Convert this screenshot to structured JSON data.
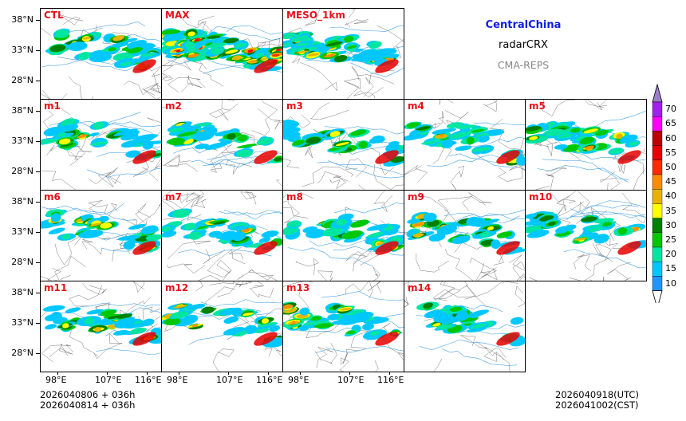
{
  "header": {
    "region": "CentralChina",
    "variable": "radarCRX",
    "system": "CMA-REPS",
    "region_color": "#0d1ee0",
    "system_color": "#888888"
  },
  "panels": [
    {
      "label": "CTL"
    },
    {
      "label": "MAX"
    },
    {
      "label": "MESO_1km"
    },
    {
      "label": "m1"
    },
    {
      "label": "m2"
    },
    {
      "label": "m3"
    },
    {
      "label": "m4"
    },
    {
      "label": "m5"
    },
    {
      "label": "m6"
    },
    {
      "label": "m7"
    },
    {
      "label": "m8"
    },
    {
      "label": "m9"
    },
    {
      "label": "m10"
    },
    {
      "label": "m11"
    },
    {
      "label": "m12"
    },
    {
      "label": "m13"
    },
    {
      "label": "m14"
    }
  ],
  "axes": {
    "lat_ticks": [
      "38°N",
      "33°N",
      "28°N"
    ],
    "lon_ticks": [
      "98°E",
      "107°E",
      "116°E"
    ]
  },
  "colorbar": {
    "labels": [
      "70",
      "65",
      "60",
      "55",
      "50",
      "45",
      "40",
      "35",
      "30",
      "25",
      "20",
      "15",
      "10"
    ],
    "colors": [
      "#a020f0",
      "#ff00ff",
      "#c00000",
      "#e60000",
      "#ff2a00",
      "#ff8c00",
      "#e6b400",
      "#ffff00",
      "#007f00",
      "#00c800",
      "#00e6a0",
      "#00c8ff",
      "#1e96ff"
    ],
    "top_color": "#9b7fc8"
  },
  "footer": {
    "init_utc": "2026040806  +  036h",
    "init_cst": "2026040814  +  036h",
    "valid_utc": "2026040918(UTC)",
    "valid_cst": "2026041002(CST)"
  }
}
